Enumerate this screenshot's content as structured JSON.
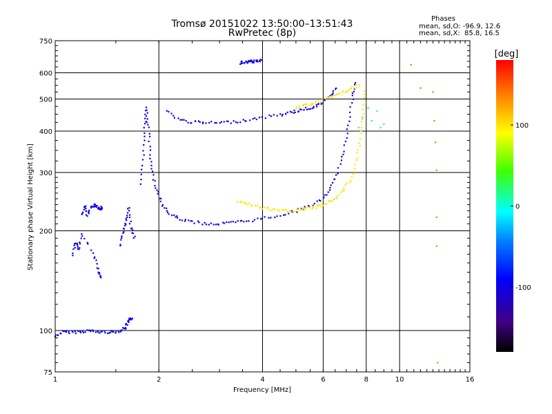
{
  "header": {
    "title_line1": "Tromsø 20151022 13:50:00–13:51:43",
    "title_line2": "RwPretec (8p)"
  },
  "phases_box": {
    "title": "Phases",
    "line1": "mean, sd,O: -96.9, 12.6",
    "line2": "mean, sd,X:  85.8, 16.5"
  },
  "colorbar": {
    "title": "[deg]",
    "range": [
      -180,
      180
    ],
    "ticks": [
      100,
      0,
      -100
    ],
    "tick_labels": [
      "100",
      "0",
      "-100"
    ]
  },
  "chart_data": {
    "type": "scatter",
    "title": "Tromsø 20151022 13:50:00–13:51:43",
    "subtitle": "RwPretec (8p)",
    "xlabel": "Frequency [MHz]",
    "ylabel": "Stationary phase Virtual Height [km]",
    "x_scale": "log",
    "y_scale": "log",
    "xlim": [
      1,
      16
    ],
    "ylim": [
      75,
      750
    ],
    "x_ticks": [
      1,
      2,
      4,
      6,
      8,
      10,
      16
    ],
    "x_tick_labels": [
      "1",
      "2",
      "4",
      "6",
      "8",
      "10",
      "16"
    ],
    "y_ticks": [
      75,
      100,
      200,
      300,
      400,
      500,
      600,
      750
    ],
    "y_tick_labels": [
      "75",
      "100",
      "200",
      "300",
      "400",
      "500",
      "600",
      "750"
    ],
    "grid": true,
    "colors": {
      "O_mode": "#1a30e0",
      "X_mode": "#e6e600",
      "grid": "#000000"
    },
    "traces": [
      {
        "mode": "O",
        "phase_deg": -100,
        "x": [
          1.0,
          1.05,
          1.1,
          1.18,
          1.25,
          1.32,
          1.4,
          1.48,
          1.55,
          1.6,
          1.63,
          1.65,
          1.67
        ],
        "y": [
          96,
          99,
          99,
          99,
          100,
          99,
          99,
          99,
          100,
          102,
          106,
          108,
          109
        ]
      },
      {
        "mode": "O",
        "phase_deg": -100,
        "x": [
          1.55,
          1.58,
          1.6,
          1.63,
          1.66,
          1.7
        ],
        "y": [
          180,
          200,
          215,
          235,
          205,
          190
        ]
      },
      {
        "mode": "O",
        "phase_deg": -100,
        "x": [
          1.2,
          1.22,
          1.24,
          1.27,
          1.3,
          1.33,
          1.35,
          1.37
        ],
        "y": [
          225,
          238,
          222,
          235,
          240,
          236,
          232,
          236
        ]
      },
      {
        "mode": "O",
        "phase_deg": -100,
        "x": [
          1.12,
          1.15,
          1.17,
          1.2,
          1.3,
          1.34,
          1.36
        ],
        "y": [
          170,
          185,
          175,
          195,
          168,
          150,
          145
        ]
      },
      {
        "mode": "O",
        "phase_deg": -100,
        "x": [
          1.78,
          1.8,
          1.82,
          1.84,
          1.86,
          1.88,
          1.92,
          1.97,
          2.05,
          2.15,
          2.3,
          2.5,
          2.75,
          3.0,
          3.3,
          3.6,
          4.0,
          4.5,
          5.0,
          5.5,
          6.0,
          6.3,
          6.6,
          6.9,
          7.1,
          7.3,
          7.4
        ],
        "y": [
          275,
          340,
          410,
          470,
          420,
          350,
          300,
          265,
          240,
          225,
          217,
          213,
          210,
          210,
          212,
          214,
          218,
          223,
          230,
          238,
          250,
          268,
          300,
          350,
          420,
          500,
          560
        ]
      },
      {
        "mode": "O",
        "phase_deg": -100,
        "x": [
          2.1,
          2.3,
          2.5,
          2.7,
          3.0,
          3.3,
          3.6,
          4.0,
          4.5,
          4.8,
          5.1,
          5.4,
          5.7,
          6.0,
          6.3,
          6.5
        ],
        "y": [
          460,
          432,
          426,
          424,
          424,
          427,
          432,
          440,
          448,
          455,
          462,
          468,
          476,
          490,
          510,
          540
        ]
      },
      {
        "mode": "O",
        "phase_deg": -100,
        "x": [
          3.45,
          3.55,
          3.65,
          3.75,
          3.85,
          3.95
        ],
        "y": [
          642,
          647,
          650,
          648,
          651,
          655
        ]
      },
      {
        "mode": "X",
        "phase_deg": 100,
        "x": [
          3.4,
          3.6,
          3.9,
          4.2,
          4.5,
          4.8,
          5.1,
          5.4,
          5.7,
          6.0,
          6.4,
          6.8,
          7.2,
          7.5,
          7.7,
          7.85,
          7.95
        ],
        "y": [
          246,
          241,
          236,
          232,
          230,
          230,
          231,
          233,
          236,
          240,
          248,
          262,
          285,
          325,
          380,
          450,
          530
        ]
      },
      {
        "mode": "X",
        "phase_deg": 100,
        "x": [
          5.0,
          5.3,
          5.6,
          6.0,
          6.4,
          6.8,
          7.2,
          7.6
        ],
        "y": [
          470,
          478,
          486,
          495,
          510,
          522,
          536,
          550
        ]
      },
      {
        "mode": "scattered",
        "phase_deg": 20,
        "x": [
          7.6,
          7.8,
          8.1,
          8.3,
          8.6,
          8.8,
          9.0
        ],
        "y": [
          410,
          440,
          470,
          430,
          460,
          410,
          420
        ]
      },
      {
        "mode": "scattered",
        "phase_deg": 140,
        "x": [
          10.8,
          11.5,
          12.5,
          12.6,
          12.7,
          12.8,
          12.8,
          12.8,
          12.9
        ],
        "y": [
          635,
          540,
          525,
          430,
          370,
          305,
          220,
          180,
          80
        ]
      }
    ]
  }
}
